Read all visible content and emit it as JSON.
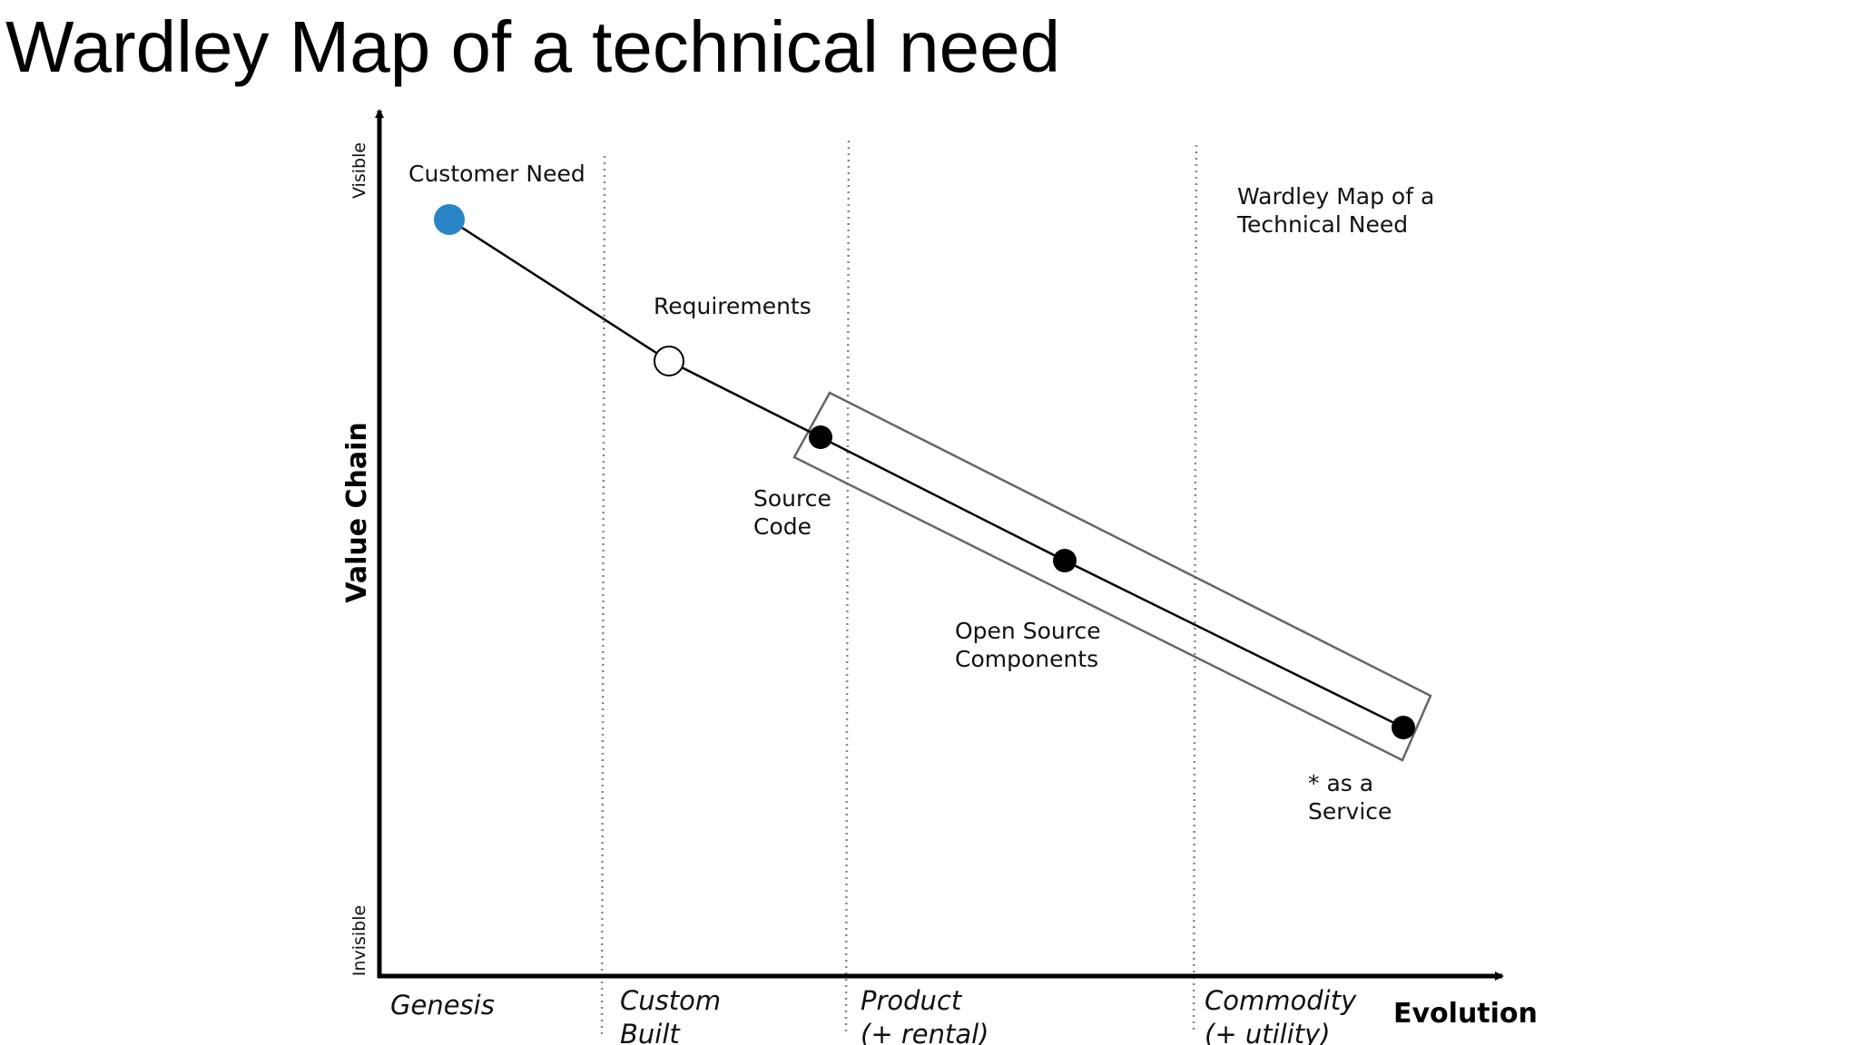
{
  "title": "Wardley Map of a technical need",
  "map": {
    "caption": [
      "Wardley Map of a",
      "Technical Need"
    ],
    "y_axis": {
      "label": "Value Chain",
      "top": "Visible",
      "bottom": "Invisible"
    },
    "x_axis": {
      "label": "Evolution"
    },
    "stages": [
      {
        "lines": [
          "Genesis"
        ]
      },
      {
        "lines": [
          "Custom",
          "Built"
        ]
      },
      {
        "lines": [
          "Product",
          "(+ rental)"
        ]
      },
      {
        "lines": [
          "Commodity",
          "(+ utility)"
        ]
      }
    ],
    "components": [
      {
        "id": "customer-need",
        "lines": [
          "Customer Need"
        ],
        "style": "user",
        "color": "#2a85c6"
      },
      {
        "id": "requirements",
        "lines": [
          "Requirements"
        ],
        "style": "open"
      },
      {
        "id": "source-code",
        "lines": [
          "Source",
          "Code"
        ],
        "style": "filled"
      },
      {
        "id": "open-source-components",
        "lines": [
          "Open Source",
          "Components"
        ],
        "style": "filled"
      },
      {
        "id": "as-a-service",
        "lines": [
          "* as a",
          "Service"
        ],
        "style": "filled"
      }
    ],
    "links": [
      [
        "customer-need",
        "requirements"
      ],
      [
        "requirements",
        "source-code"
      ],
      [
        "source-code",
        "open-source-components"
      ],
      [
        "open-source-components",
        "as-a-service"
      ]
    ],
    "grouping": [
      "source-code",
      "open-source-components",
      "as-a-service"
    ]
  }
}
